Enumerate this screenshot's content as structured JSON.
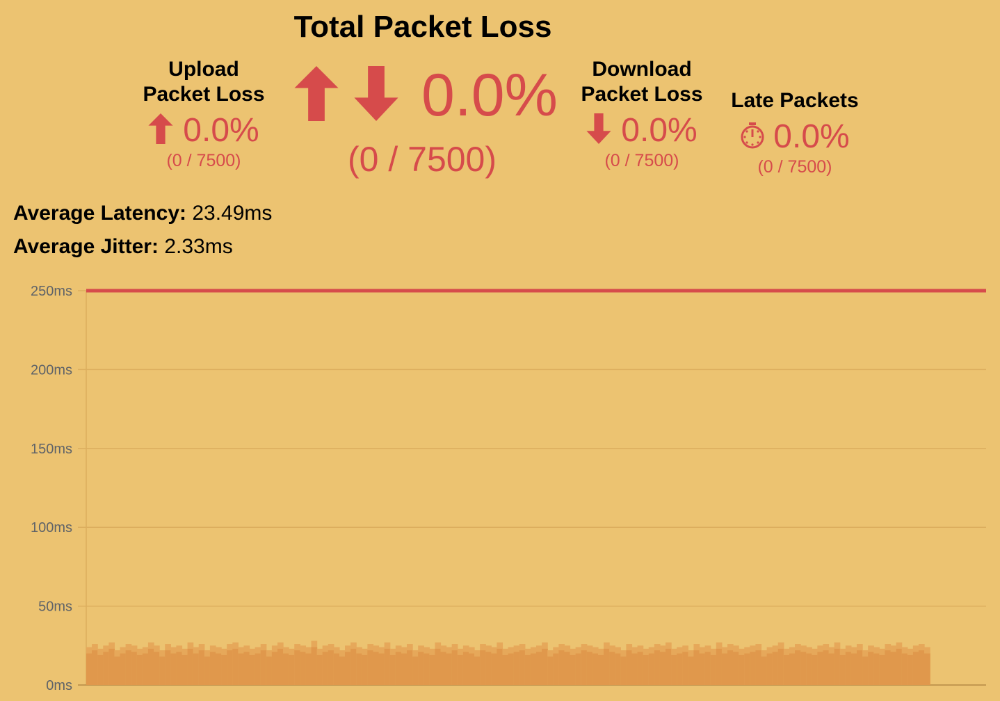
{
  "total": {
    "title": "Total Packet Loss",
    "percent": "0.0%",
    "count": "(0 / 7500)",
    "icons": [
      "arrow-up-icon",
      "arrow-down-icon"
    ]
  },
  "upload": {
    "label_line1": "Upload",
    "label_line2": "Packet Loss",
    "percent": "0.0%",
    "count": "(0 / 7500)",
    "icon": "arrow-up-icon"
  },
  "download": {
    "label_line1": "Download",
    "label_line2": "Packet Loss",
    "percent": "0.0%",
    "count": "(0 / 7500)",
    "icon": "arrow-down-icon"
  },
  "late": {
    "label": "Late Packets",
    "percent": "0.0%",
    "count": "(0 / 7500)",
    "icon": "stopwatch-icon"
  },
  "stats": {
    "latency_label": "Average Latency:",
    "latency_value": "23.49ms",
    "jitter_label": "Average Jitter:",
    "jitter_value": "2.33ms"
  },
  "colors": {
    "background": "#ecc371",
    "accent": "#d64b4b",
    "area": "#e0984c",
    "grid": "#dcae5e",
    "axis_text": "#5f6368"
  },
  "chart_data": {
    "type": "area",
    "ylim": [
      0,
      250
    ],
    "xlim": [
      0,
      8000
    ],
    "grid": true,
    "y_ticks": [
      "0ms",
      "50ms",
      "100ms",
      "150ms",
      "200ms",
      "250ms"
    ],
    "y_tick_values": [
      0,
      50,
      100,
      150,
      200,
      250
    ],
    "threshold": 250,
    "samples": 7500,
    "values": [
      24,
      26,
      23,
      25,
      27,
      22,
      24,
      26,
      25,
      23,
      24,
      27,
      25,
      22,
      26,
      24,
      25,
      23,
      27,
      24,
      26,
      22,
      25,
      24,
      23,
      26,
      27,
      24,
      25,
      23,
      24,
      26,
      22,
      25,
      27,
      24,
      23,
      26,
      25,
      24,
      28,
      23,
      25,
      26,
      24,
      22,
      25,
      27,
      24,
      23,
      26,
      25,
      24,
      27,
      23,
      25,
      24,
      26,
      22,
      25,
      24,
      23,
      27,
      25,
      24,
      26,
      23,
      25,
      24,
      22,
      26,
      25,
      24,
      27,
      23,
      24,
      25,
      26,
      23,
      24,
      25,
      27,
      22,
      24,
      26,
      25,
      23,
      24,
      26,
      25,
      24,
      23,
      27,
      25,
      24,
      22,
      26,
      24,
      25,
      23,
      24,
      26,
      25,
      27,
      23,
      24,
      25,
      22,
      26,
      24,
      25,
      23,
      27,
      24,
      26,
      25,
      23,
      24,
      25,
      26,
      22,
      24,
      25,
      27,
      23,
      24,
      26,
      25,
      24,
      23,
      25,
      26,
      24,
      27,
      23,
      25,
      24,
      26,
      22,
      25,
      24,
      23,
      26,
      25,
      27,
      24,
      23,
      25,
      26,
      24
    ]
  }
}
